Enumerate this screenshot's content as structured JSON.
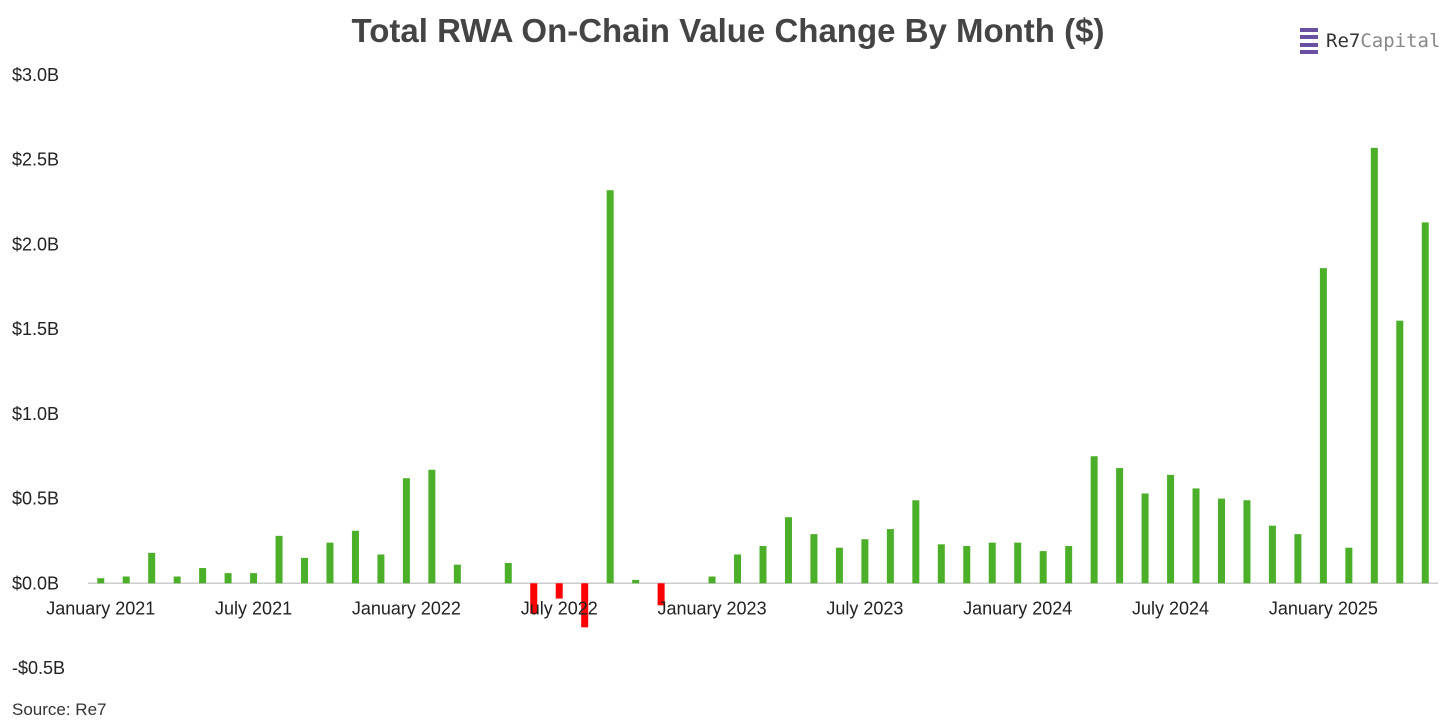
{
  "source": "Source: Re7",
  "logo": {
    "text_bold": "Re7",
    "text_light": "Capital"
  },
  "colors": {
    "positive": "#4caf2a",
    "negative": "#ff0000",
    "axis": "#cccccc",
    "title": "#444444"
  },
  "chart_data": {
    "type": "bar",
    "title": "Total RWA On-Chain Value Change By Month ($)",
    "xlabel": "",
    "ylabel": "",
    "ylim": [
      -0.5,
      3.0
    ],
    "yticks": [
      {
        "value": 3.0,
        "label": "$3.0B"
      },
      {
        "value": 2.5,
        "label": "$2.5B"
      },
      {
        "value": 2.0,
        "label": "$2.0B"
      },
      {
        "value": 1.5,
        "label": "$1.5B"
      },
      {
        "value": 1.0,
        "label": "$1.0B"
      },
      {
        "value": 0.5,
        "label": "$0.5B"
      },
      {
        "value": 0.0,
        "label": "$0.0B"
      },
      {
        "value": -0.5,
        "label": "-$0.5B"
      }
    ],
    "xtick_labels": [
      {
        "index": 0,
        "label": "January 2021"
      },
      {
        "index": 6,
        "label": "July 2021"
      },
      {
        "index": 12,
        "label": "January 2022"
      },
      {
        "index": 18,
        "label": "July 2022"
      },
      {
        "index": 24,
        "label": "January 2023"
      },
      {
        "index": 30,
        "label": "July 2023"
      },
      {
        "index": 36,
        "label": "January 2024"
      },
      {
        "index": 42,
        "label": "July 2024"
      },
      {
        "index": 48,
        "label": "January 2025"
      }
    ],
    "categories": [
      "2021-01",
      "2021-02",
      "2021-03",
      "2021-04",
      "2021-05",
      "2021-06",
      "2021-07",
      "2021-08",
      "2021-09",
      "2021-10",
      "2021-11",
      "2021-12",
      "2022-01",
      "2022-02",
      "2022-03",
      "2022-04",
      "2022-05",
      "2022-06",
      "2022-07",
      "2022-08",
      "2022-09",
      "2022-10",
      "2022-11",
      "2022-12",
      "2023-01",
      "2023-02",
      "2023-03",
      "2023-04",
      "2023-05",
      "2023-06",
      "2023-07",
      "2023-08",
      "2023-09",
      "2023-10",
      "2023-11",
      "2023-12",
      "2024-01",
      "2024-02",
      "2024-03",
      "2024-04",
      "2024-05",
      "2024-06",
      "2024-07",
      "2024-08",
      "2024-09",
      "2024-10",
      "2024-11",
      "2024-12",
      "2025-01",
      "2025-02",
      "2025-03",
      "2025-04",
      "2025-05"
    ],
    "values": [
      0.03,
      0.04,
      0.18,
      0.04,
      0.09,
      0.06,
      0.06,
      0.28,
      0.15,
      0.24,
      0.31,
      0.17,
      0.62,
      0.67,
      0.11,
      0.0,
      0.12,
      -0.18,
      -0.09,
      -0.26,
      2.32,
      0.02,
      -0.13,
      0.0,
      0.04,
      0.17,
      0.22,
      0.39,
      0.29,
      0.21,
      0.26,
      0.32,
      0.49,
      0.23,
      0.22,
      0.24,
      0.24,
      0.19,
      0.22,
      0.75,
      0.68,
      0.53,
      0.64,
      0.56,
      0.5,
      0.49,
      0.34,
      0.29,
      1.86,
      0.21,
      2.57,
      1.55,
      2.13
    ]
  }
}
